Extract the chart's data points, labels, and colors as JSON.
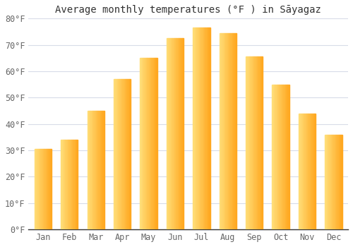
{
  "title": "Average monthly temperatures (°F ) in Sāyagaz",
  "months": [
    "Jan",
    "Feb",
    "Mar",
    "Apr",
    "May",
    "Jun",
    "Jul",
    "Aug",
    "Sep",
    "Oct",
    "Nov",
    "Dec"
  ],
  "values": [
    30.5,
    34,
    45,
    57,
    65,
    72.5,
    76.5,
    74.5,
    65.5,
    55,
    44,
    36
  ],
  "bar_color_main": "#FFA820",
  "bar_color_light": "#FFD878",
  "ylim": [
    0,
    80
  ],
  "yticks": [
    0,
    10,
    20,
    30,
    40,
    50,
    60,
    70,
    80
  ],
  "ytick_labels": [
    "0°F",
    "10°F",
    "20°F",
    "30°F",
    "40°F",
    "50°F",
    "60°F",
    "70°F",
    "80°F"
  ],
  "background_color": "#ffffff",
  "plot_bg_color": "#ffffff",
  "grid_color": "#d8dce8",
  "title_fontsize": 10,
  "tick_fontsize": 8.5,
  "bar_edge_color": "none",
  "figsize": [
    5.0,
    3.5
  ],
  "dpi": 100
}
